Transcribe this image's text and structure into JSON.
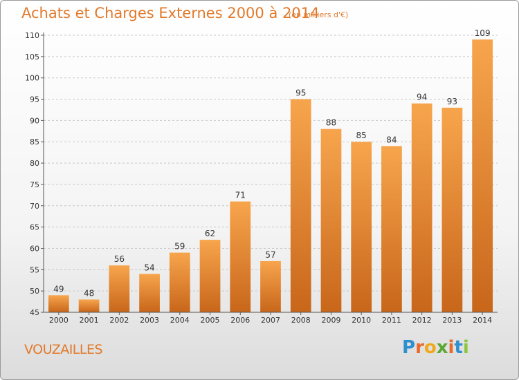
{
  "header": {
    "title": "Achats et Charges Externes 2000 à 2014",
    "subtitle": "(en milliers d'€)"
  },
  "footer": {
    "commune": "VOUZAILLES",
    "logo_letters": [
      "P",
      "r",
      "o",
      "x",
      "i",
      "t",
      "i"
    ],
    "logo_colors": [
      "#2f8fcf",
      "#e8692a",
      "#f2a81d",
      "#5aa832",
      "#e8692a",
      "#2f8fcf",
      "#8cc63f"
    ]
  },
  "colors": {
    "accent": "#e2792a",
    "bar_top": "#f7a54d",
    "bar_bottom": "#c8661a",
    "grid": "#c8c8c8",
    "axis": "#555555",
    "text": "#333333"
  },
  "chart_data": {
    "type": "bar",
    "categories": [
      "2000",
      "2001",
      "2002",
      "2003",
      "2004",
      "2005",
      "2006",
      "2007",
      "2008",
      "2009",
      "2010",
      "2011",
      "2012",
      "2013",
      "2014"
    ],
    "values": [
      49,
      48,
      56,
      54,
      59,
      62,
      71,
      57,
      95,
      88,
      85,
      84,
      94,
      93,
      109
    ],
    "ylim": [
      45,
      110
    ],
    "yticks": [
      45,
      50,
      55,
      60,
      65,
      70,
      75,
      80,
      85,
      90,
      95,
      100,
      105,
      110
    ],
    "grid": true
  }
}
